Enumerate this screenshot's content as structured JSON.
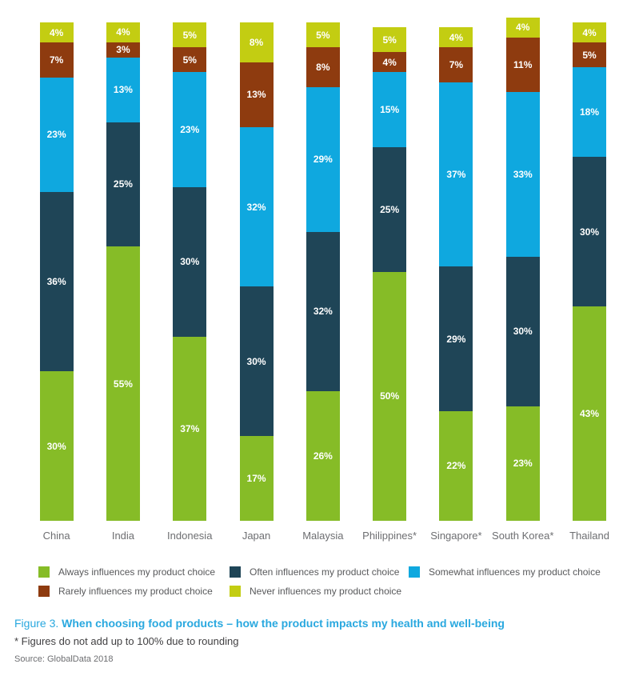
{
  "chart_data": {
    "type": "bar",
    "stacked": true,
    "orientation": "vertical",
    "grid": false,
    "value_suffix": "%",
    "categories": [
      "China",
      "India",
      "Indonesia",
      "Japan",
      "Malaysia",
      "Philippines*",
      "Singapore*",
      "South Korea*",
      "Thailand"
    ],
    "series": [
      {
        "name": "Always influences my product choice",
        "color": "#86BC27",
        "values": [
          30,
          55,
          37,
          17,
          26,
          50,
          22,
          23,
          43
        ]
      },
      {
        "name": "Often influences my product choice",
        "color": "#1F4557",
        "values": [
          36,
          25,
          30,
          30,
          32,
          25,
          29,
          30,
          30
        ]
      },
      {
        "name": "Somewhat influences my product choice",
        "color": "#0FA8DF",
        "values": [
          23,
          13,
          23,
          32,
          29,
          15,
          37,
          33,
          18
        ]
      },
      {
        "name": "Rarely influences my product choice",
        "color": "#8E3B0F",
        "values": [
          7,
          3,
          5,
          13,
          8,
          4,
          7,
          11,
          5
        ]
      },
      {
        "name": "Never influences my product choice",
        "color": "#C3CD12",
        "values": [
          4,
          4,
          5,
          8,
          5,
          5,
          4,
          4,
          4
        ]
      }
    ],
    "legend_position": "bottom",
    "legend_rows": [
      [
        0,
        1,
        2
      ],
      [
        3,
        4
      ]
    ]
  },
  "caption": {
    "prefix": "Figure 3. ",
    "title": "When choosing food products – how the product impacts my health and well-being"
  },
  "footnote": "* Figures do not add up to 100% due to rounding",
  "source": "Source: GlobalData 2018"
}
